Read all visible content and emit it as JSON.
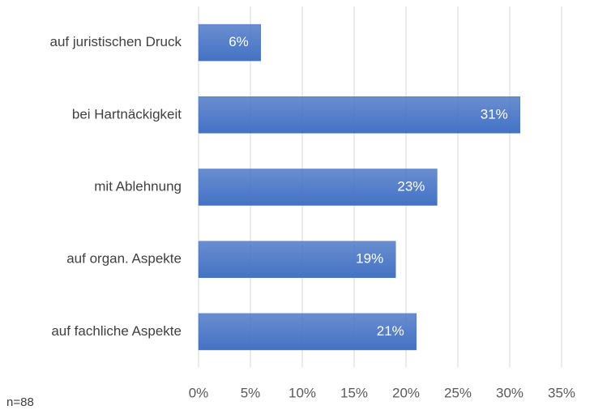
{
  "chart_data": {
    "type": "bar",
    "orientation": "horizontal",
    "categories": [
      "auf juristischen Druck",
      "bei Hartnäckigkeit",
      "mit Ablehnung",
      "auf organ. Aspekte",
      "auf fachliche Aspekte"
    ],
    "values": [
      6,
      31,
      23,
      19,
      21
    ],
    "value_labels": [
      "6%",
      "31%",
      "23%",
      "19%",
      "21%"
    ],
    "color": "#4472c4",
    "xlim": [
      0,
      35
    ],
    "xticks": [
      {
        "value": 0,
        "label": "0%"
      },
      {
        "value": 5,
        "label": "5%"
      },
      {
        "value": 10,
        "label": "10%"
      },
      {
        "value": 15,
        "label": "15%"
      },
      {
        "value": 20,
        "label": "20%"
      },
      {
        "value": 25,
        "label": "25%"
      },
      {
        "value": 30,
        "label": "30%"
      },
      {
        "value": 35,
        "label": "35%"
      }
    ],
    "grid": true,
    "annotation": "n=88"
  }
}
